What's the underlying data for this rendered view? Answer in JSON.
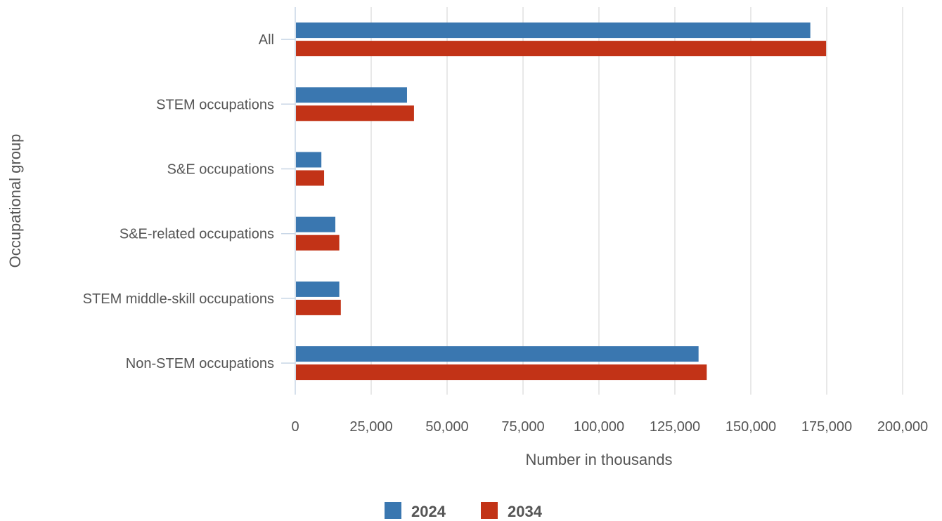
{
  "chart_data": {
    "type": "bar",
    "orientation": "horizontal",
    "categories": [
      "All",
      "STEM occupations",
      "S&E occupations",
      "S&E-related occupations",
      "STEM middle-skill occupations",
      "Non-STEM occupations"
    ],
    "series": [
      {
        "name": "2024",
        "color": "#3a77b0",
        "values": [
          169600,
          36800,
          8600,
          13200,
          14500,
          132800
        ]
      },
      {
        "name": "2034",
        "color": "#c23317",
        "values": [
          174800,
          39100,
          9500,
          14500,
          15000,
          135500
        ]
      }
    ],
    "x_ticks": [
      "0",
      "25,000",
      "50,000",
      "75,000",
      "100,000",
      "125,000",
      "150,000",
      "175,000",
      "200,000"
    ],
    "xlim": [
      0,
      200000
    ],
    "xlabel": "Number in thousands",
    "ylabel": "Occupational group",
    "grid": "vertical",
    "legend_position": "bottom-center"
  }
}
